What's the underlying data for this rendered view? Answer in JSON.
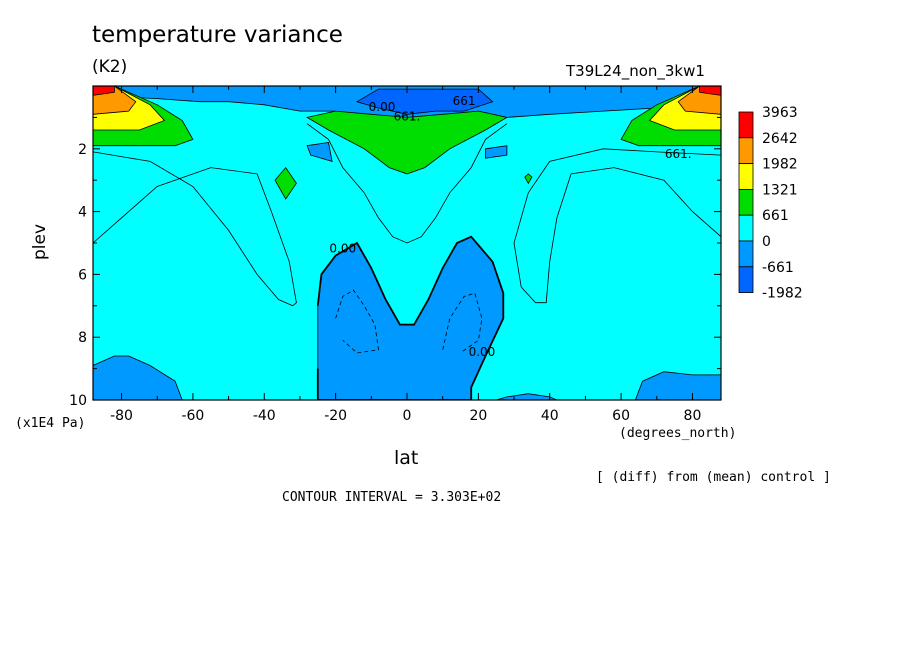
{
  "title": "temperature variance",
  "units": "(K2)",
  "run_id": "T39L24_non_3kw1",
  "y_axis": {
    "label": "plev",
    "unit": "(x1E4 Pa)"
  },
  "x_axis": {
    "label": "lat",
    "unit": "(degrees_north)"
  },
  "note": "[ (diff) from (mean) control ]",
  "contour_interval": "CONTOUR INTERVAL = 3.303E+02",
  "chart_data": {
    "type": "heatmap",
    "title": "temperature variance",
    "xlabel": "lat",
    "ylabel": "plev",
    "x_ticks": [
      -80,
      -60,
      -40,
      -20,
      0,
      20,
      40,
      60,
      80
    ],
    "x_tick_labels": [
      "-80",
      "-60",
      "-40",
      "-20",
      "0",
      "20",
      "40",
      "60",
      "80"
    ],
    "y_ticks": [
      2,
      4,
      6,
      8,
      10
    ],
    "y_tick_labels": [
      "2",
      "4",
      "6",
      "8",
      "10"
    ],
    "xlim": [
      -88,
      88
    ],
    "ylim": [
      0,
      10
    ],
    "y_inverted": true,
    "colorbar": {
      "levels": [
        "3963",
        "2642",
        "1982",
        "1321",
        "661",
        "0",
        "-661",
        "-1982"
      ],
      "colors": [
        "#ff0000",
        "#ff9900",
        "#ffff00",
        "#00dd00",
        "#00ffff",
        "#0099ff",
        "#0066ff"
      ]
    },
    "contour_labels": [
      {
        "text": "0.00",
        "lat": -18,
        "plev": 5.3
      },
      {
        "text": "0.00",
        "lat": 21,
        "plev": 8.6
      },
      {
        "text": "661.",
        "lat": 76,
        "plev": 2.3
      },
      {
        "text": "661",
        "lat": 16,
        "plev": 0.6
      },
      {
        "text": "661.",
        "lat": 0,
        "plev": 1.1
      },
      {
        "text": "0.00",
        "lat": -7,
        "plev": 0.8
      }
    ],
    "regions": [
      {
        "color": "#00ffff",
        "polygon": [
          [
            -88,
            0
          ],
          [
            88,
            0
          ],
          [
            88,
            10
          ],
          [
            -88,
            10
          ]
        ]
      },
      {
        "color": "#0099ff",
        "polygon": [
          [
            -88,
            0
          ],
          [
            88,
            0
          ],
          [
            88,
            0.3
          ],
          [
            70,
            0.7
          ],
          [
            55,
            0.8
          ],
          [
            40,
            0.9
          ],
          [
            28,
            1.0
          ],
          [
            20,
            0.8
          ],
          [
            12,
            1.0
          ],
          [
            0,
            1.1
          ],
          [
            -12,
            1.0
          ],
          [
            -20,
            0.8
          ],
          [
            -30,
            0.8
          ],
          [
            -40,
            0.6
          ],
          [
            -50,
            0.5
          ],
          [
            -58,
            0.5
          ],
          [
            -70,
            0.4
          ],
          [
            -88,
            0.3
          ]
        ]
      },
      {
        "color": "#0066ff",
        "polygon": [
          [
            -8,
            0.1
          ],
          [
            20,
            0.1
          ],
          [
            24,
            0.5
          ],
          [
            16,
            0.8
          ],
          [
            8,
            0.8
          ],
          [
            0,
            0.9
          ],
          [
            -8,
            0.7
          ],
          [
            -14,
            0.5
          ]
        ]
      },
      {
        "color": "#00dd00",
        "polygon": [
          [
            -88,
            1.9
          ],
          [
            -88,
            0.0
          ],
          [
            -82,
            0.0
          ],
          [
            -70,
            0.6
          ],
          [
            -63,
            1.1
          ],
          [
            -60,
            1.7
          ],
          [
            -65,
            1.9
          ],
          [
            -75,
            1.9
          ]
        ]
      },
      {
        "color": "#ffff00",
        "polygon": [
          [
            -88,
            1.4
          ],
          [
            -88,
            0.0
          ],
          [
            -82,
            0.0
          ],
          [
            -72,
            0.6
          ],
          [
            -68,
            1.1
          ],
          [
            -75,
            1.4
          ]
        ]
      },
      {
        "color": "#ff9900",
        "polygon": [
          [
            -88,
            0.9
          ],
          [
            -88,
            0.0
          ],
          [
            -82,
            0.0
          ],
          [
            -76,
            0.5
          ],
          [
            -78,
            0.8
          ]
        ]
      },
      {
        "color": "#ff0000",
        "polygon": [
          [
            -88,
            0.3
          ],
          [
            -88,
            0.0
          ],
          [
            -82,
            0.0
          ],
          [
            -82,
            0.2
          ]
        ]
      },
      {
        "color": "#00dd00",
        "polygon": [
          [
            88,
            1.9
          ],
          [
            88,
            0.0
          ],
          [
            82,
            0.0
          ],
          [
            70,
            0.6
          ],
          [
            63,
            1.1
          ],
          [
            60,
            1.7
          ],
          [
            65,
            1.9
          ],
          [
            75,
            1.9
          ]
        ]
      },
      {
        "color": "#ffff00",
        "polygon": [
          [
            88,
            1.4
          ],
          [
            88,
            0.0
          ],
          [
            82,
            0.0
          ],
          [
            72,
            0.6
          ],
          [
            68,
            1.1
          ],
          [
            75,
            1.4
          ]
        ]
      },
      {
        "color": "#ff9900",
        "polygon": [
          [
            88,
            0.9
          ],
          [
            88,
            0.0
          ],
          [
            82,
            0.0
          ],
          [
            76,
            0.5
          ],
          [
            78,
            0.8
          ]
        ]
      },
      {
        "color": "#ff0000",
        "polygon": [
          [
            88,
            0.3
          ],
          [
            88,
            0.0
          ],
          [
            82,
            0.0
          ],
          [
            82,
            0.2
          ]
        ]
      },
      {
        "color": "#00dd00",
        "polygon": [
          [
            -28,
            1.0
          ],
          [
            -20,
            0.8
          ],
          [
            -10,
            0.9
          ],
          [
            0,
            1.0
          ],
          [
            10,
            0.9
          ],
          [
            20,
            0.8
          ],
          [
            28,
            1.0
          ],
          [
            22,
            1.4
          ],
          [
            12,
            2.0
          ],
          [
            5,
            2.6
          ],
          [
            0,
            2.8
          ],
          [
            -5,
            2.6
          ],
          [
            -12,
            2.0
          ],
          [
            -22,
            1.4
          ]
        ]
      },
      {
        "color": "#00dd00",
        "polygon": [
          [
            -37,
            3.0
          ],
          [
            -34,
            2.6
          ],
          [
            -31,
            3.1
          ],
          [
            -34,
            3.6
          ]
        ]
      },
      {
        "color": "#00dd00",
        "polygon": [
          [
            34,
            2.8
          ],
          [
            35,
            2.9
          ],
          [
            34,
            3.1
          ],
          [
            33,
            2.9
          ]
        ]
      },
      {
        "color": "#0099ff",
        "polygon": [
          [
            -28,
            1.9
          ],
          [
            -22,
            1.8
          ],
          [
            -21,
            2.4
          ],
          [
            -27,
            2.2
          ]
        ]
      },
      {
        "color": "#0099ff",
        "polygon": [
          [
            22,
            2.0
          ],
          [
            28,
            1.9
          ],
          [
            28,
            2.2
          ],
          [
            22,
            2.3
          ]
        ]
      },
      {
        "color": "#0099ff",
        "polygon": [
          [
            -25,
            7.0
          ],
          [
            -24,
            6.0
          ],
          [
            -20,
            5.4
          ],
          [
            -14,
            5.0
          ],
          [
            -10,
            5.8
          ],
          [
            -6,
            6.8
          ],
          [
            -2,
            7.6
          ],
          [
            2,
            7.6
          ],
          [
            6,
            6.8
          ],
          [
            10,
            5.8
          ],
          [
            14,
            5.0
          ],
          [
            18,
            4.8
          ],
          [
            24,
            5.6
          ],
          [
            27,
            6.6
          ],
          [
            27,
            7.4
          ],
          [
            22,
            8.6
          ],
          [
            18,
            9.6
          ],
          [
            18,
            10
          ],
          [
            -25,
            10
          ],
          [
            -25,
            9.0
          ]
        ]
      },
      {
        "color": "#0099ff",
        "polygon": [
          [
            -88,
            10
          ],
          [
            -88,
            8.9
          ],
          [
            -82,
            8.6
          ],
          [
            -78,
            8.6
          ],
          [
            -72,
            8.9
          ],
          [
            -65,
            9.4
          ],
          [
            -63,
            10
          ]
        ]
      },
      {
        "color": "#0099ff",
        "polygon": [
          [
            88,
            10
          ],
          [
            88,
            9.2
          ],
          [
            80,
            9.2
          ],
          [
            72,
            9.1
          ],
          [
            66,
            9.4
          ],
          [
            64,
            10
          ]
        ]
      },
      {
        "color": "#0099ff",
        "polygon": [
          [
            25,
            10
          ],
          [
            28,
            9.9
          ],
          [
            34,
            9.8
          ],
          [
            40,
            9.9
          ],
          [
            42,
            10
          ]
        ]
      }
    ],
    "contour_lines": [
      {
        "style": "solid",
        "points": [
          [
            -88,
            5.0
          ],
          [
            -80,
            4.2
          ],
          [
            -70,
            3.2
          ],
          [
            -55,
            2.6
          ],
          [
            -42,
            2.8
          ],
          [
            -38,
            4.0
          ],
          [
            -33,
            5.6
          ],
          [
            -31,
            6.9
          ],
          [
            -32,
            7.0
          ],
          [
            -36,
            6.8
          ],
          [
            -42,
            6.0
          ],
          [
            -50,
            4.6
          ],
          [
            -60,
            3.2
          ],
          [
            -72,
            2.4
          ],
          [
            -88,
            2.1
          ]
        ]
      },
      {
        "style": "solid",
        "points": [
          [
            -28,
            1.2
          ],
          [
            -22,
            1.7
          ],
          [
            -18,
            2.6
          ],
          [
            -12,
            3.4
          ],
          [
            -8,
            4.2
          ],
          [
            -4,
            4.8
          ],
          [
            0,
            5.0
          ],
          [
            4,
            4.8
          ],
          [
            8,
            4.2
          ],
          [
            12,
            3.4
          ],
          [
            18,
            2.6
          ],
          [
            22,
            1.7
          ],
          [
            28,
            1.2
          ]
        ]
      },
      {
        "style": "solid",
        "points": [
          [
            88,
            4.8
          ],
          [
            80,
            4.0
          ],
          [
            72,
            3.0
          ],
          [
            58,
            2.6
          ],
          [
            46,
            2.8
          ],
          [
            42,
            4.2
          ],
          [
            40,
            5.6
          ],
          [
            39,
            6.9
          ],
          [
            36,
            6.9
          ],
          [
            32,
            6.4
          ],
          [
            30,
            5.0
          ],
          [
            34,
            3.4
          ],
          [
            40,
            2.4
          ],
          [
            55,
            2.0
          ],
          [
            70,
            2.1
          ],
          [
            88,
            2.2
          ]
        ]
      },
      {
        "style": "dashed",
        "points": [
          [
            -20,
            7.4
          ],
          [
            -18,
            6.7
          ],
          [
            -15,
            6.5
          ],
          [
            -12,
            7.0
          ],
          [
            -9,
            7.6
          ],
          [
            -8,
            8.4
          ],
          [
            -14,
            8.5
          ],
          [
            -18,
            8.1
          ]
        ]
      },
      {
        "style": "dashed",
        "points": [
          [
            10,
            8.4
          ],
          [
            12,
            7.4
          ],
          [
            16,
            6.7
          ],
          [
            19,
            6.6
          ],
          [
            21,
            7.4
          ],
          [
            20,
            8.1
          ],
          [
            15,
            8.5
          ]
        ]
      }
    ]
  }
}
